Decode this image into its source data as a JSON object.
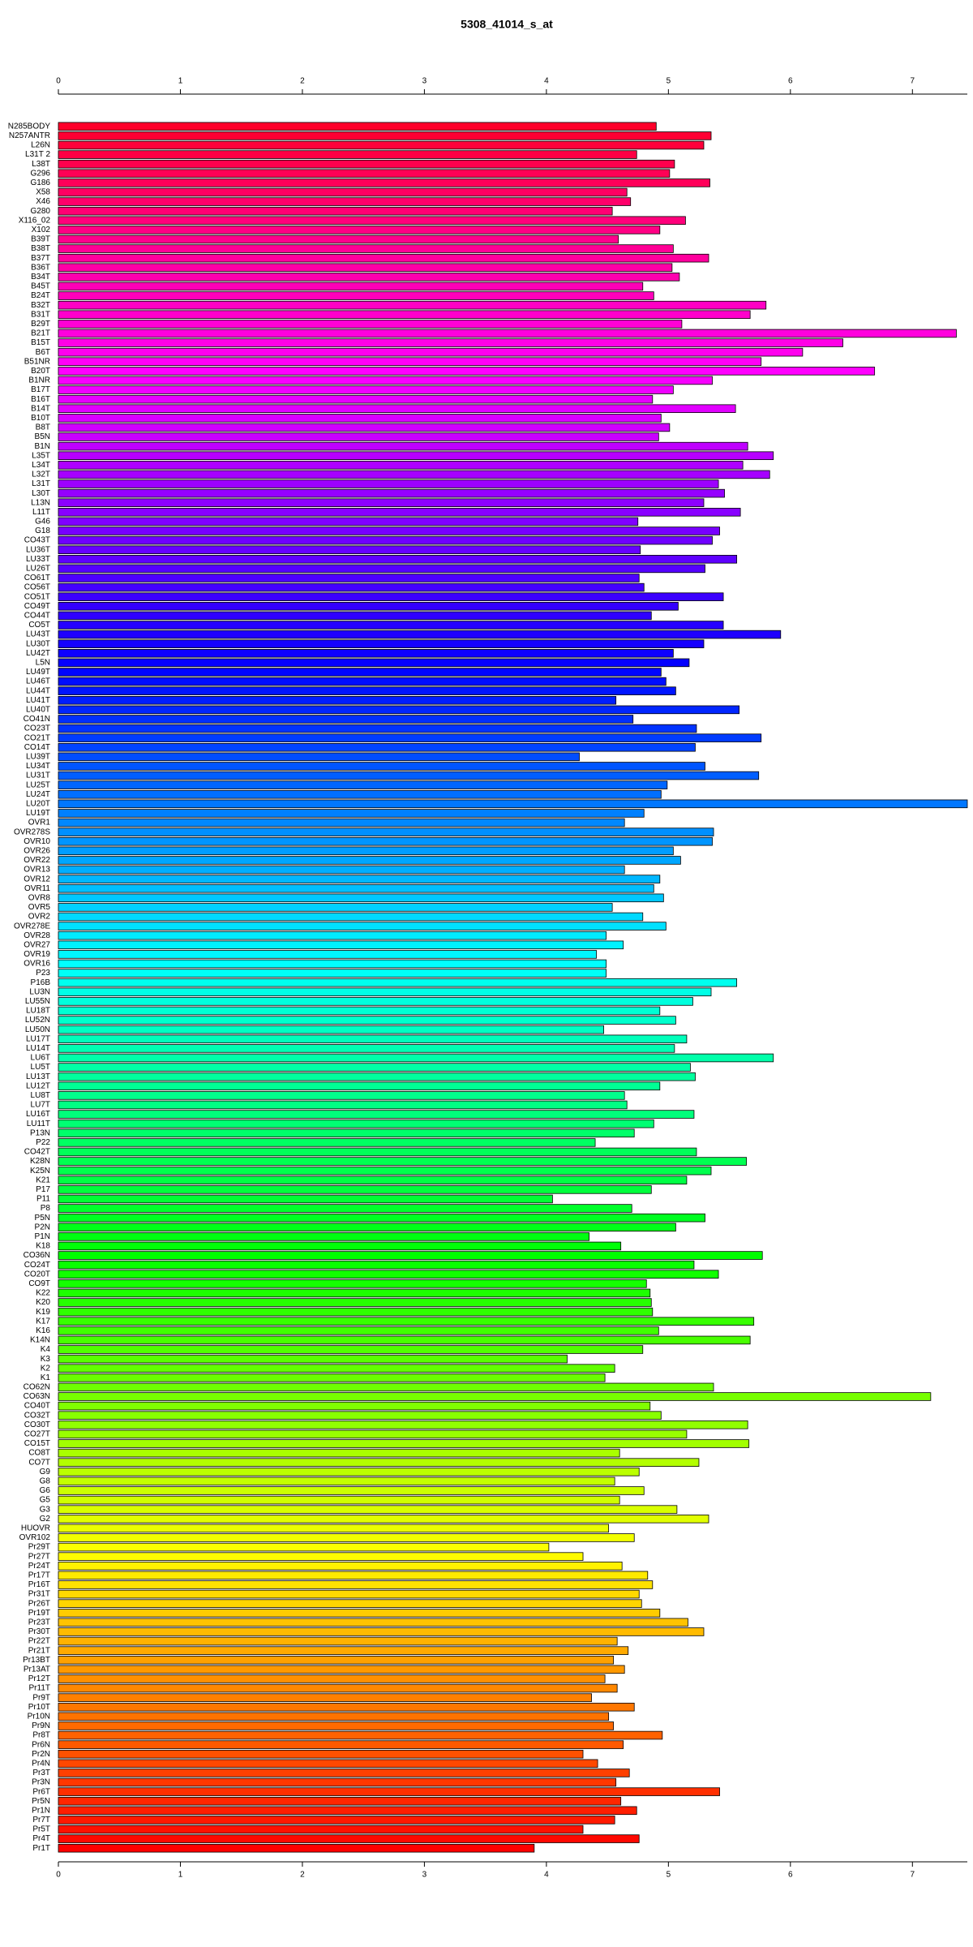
{
  "chart_data": {
    "type": "barh",
    "title": "5308_41014_s_at",
    "categories": [
      "N285BODY",
      "N257ANTR",
      "L26N",
      "L31T 2",
      "L38T",
      "G296",
      "G186",
      "X58",
      "X46",
      "G280",
      "X116_02",
      "X102",
      "B39T",
      "B38T",
      "B37T",
      "B36T",
      "B34T",
      "B45T",
      "B24T",
      "B32T",
      "B31T",
      "B29T",
      "B21T",
      "B15T",
      "B6T",
      "B51NR",
      "B20T",
      "B1NR",
      "B17T",
      "B16T",
      "B14T",
      "B10T",
      "B8T",
      "B5N",
      "B1N",
      "L35T",
      "L34T",
      "L32T",
      "L31T",
      "L30T",
      "L13N",
      "L11T",
      "G46",
      "G18",
      "CO43T",
      "LU36T",
      "LU33T",
      "LU26T",
      "CO61T",
      "CO56T",
      "CO51T",
      "CO49T",
      "CO44T",
      "CO5T",
      "LU43T",
      "LU30T",
      "LU42T",
      "L5N",
      "LU49T",
      "LU46T",
      "LU44T",
      "LU41T",
      "LU40T",
      "CO41N",
      "CO23T",
      "CO21T",
      "CO14T",
      "LU39T",
      "LU34T",
      "LU31T",
      "LU25T",
      "LU24T",
      "LU20T",
      "LU19T",
      "OVR1",
      "OVR278S",
      "OVR10",
      "OVR26",
      "OVR22",
      "OVR13",
      "OVR12",
      "OVR11",
      "OVR8",
      "OVR5",
      "OVR2",
      "OVR278E",
      "OVR28",
      "OVR27",
      "OVR19",
      "OVR16",
      "P23",
      "P16B",
      "LU3N",
      "LU55N",
      "LU18T",
      "LU52N",
      "LU50N",
      "LU17T",
      "LU14T",
      "LU6T",
      "LU5T",
      "LU13T",
      "LU12T",
      "LU8T",
      "LU7T",
      "LU16T",
      "LU11T",
      "P13N",
      "P22",
      "CO42T",
      "K28N",
      "K25N",
      "K21",
      "P17",
      "P11",
      "P8",
      "P5N",
      "P2N",
      "P1N",
      "K18",
      "CO36N",
      "CO24T",
      "CO20T",
      "CO9T",
      "K22",
      "K20",
      "K19",
      "K17",
      "K16",
      "K14N",
      "K4",
      "K3",
      "K2",
      "K1",
      "CO62N",
      "CO63N",
      "CO40T",
      "CO32T",
      "CO30T",
      "CO27T",
      "CO15T",
      "CO8T",
      "CO7T",
      "G9",
      "G8",
      "G6",
      "G5",
      "G3",
      "G2",
      "HUOVR",
      "OVR102",
      "Pr29T",
      "Pr27T",
      "Pr24T",
      "Pr17T",
      "Pr16T",
      "Pr31T",
      "Pr26T",
      "Pr19T",
      "Pr23T",
      "Pr30T",
      "Pr22T",
      "Pr21T",
      "Pr13BT",
      "Pr13AT",
      "Pr12T",
      "Pr11T",
      "Pr9T",
      "Pr10T",
      "Pr10N",
      "Pr9N",
      "Pr8T",
      "Pr6N",
      "Pr2N",
      "Pr4N",
      "Pr3T",
      "Pr3N",
      "Pr6T",
      "Pr5N",
      "Pr1N",
      "Pr7T",
      "Pr5T",
      "Pr4T",
      "Pr1T"
    ],
    "values": [
      4.9,
      5.35,
      5.29,
      4.74,
      5.05,
      5.01,
      5.34,
      4.66,
      4.69,
      4.54,
      5.14,
      4.93,
      4.59,
      5.04,
      5.33,
      5.03,
      5.09,
      4.79,
      4.88,
      5.8,
      5.67,
      5.11,
      7.36,
      6.43,
      6.1,
      5.76,
      6.69,
      5.36,
      5.04,
      4.87,
      5.55,
      4.94,
      5.01,
      4.92,
      5.65,
      5.86,
      5.61,
      5.83,
      5.41,
      5.46,
      5.29,
      5.59,
      4.75,
      5.42,
      5.36,
      4.77,
      5.56,
      5.3,
      4.76,
      4.8,
      5.45,
      5.08,
      4.86,
      5.45,
      5.92,
      5.29,
      5.04,
      5.17,
      4.94,
      4.98,
      5.06,
      4.57,
      5.58,
      4.71,
      5.23,
      5.76,
      5.22,
      4.27,
      5.3,
      5.74,
      4.99,
      4.94,
      7.45,
      4.8,
      4.64,
      5.37,
      5.36,
      5.04,
      5.1,
      4.64,
      4.93,
      4.88,
      4.96,
      4.54,
      4.79,
      4.98,
      4.49,
      4.63,
      4.41,
      4.49,
      4.49,
      5.56,
      5.35,
      5.2,
      4.93,
      5.06,
      4.47,
      5.15,
      5.05,
      5.86,
      5.18,
      5.22,
      4.93,
      4.64,
      4.66,
      5.21,
      4.88,
      4.72,
      4.4,
      5.23,
      5.64,
      5.35,
      5.15,
      4.86,
      4.05,
      4.7,
      5.3,
      5.06,
      4.35,
      4.61,
      5.77,
      5.21,
      5.41,
      4.82,
      4.85,
      4.86,
      4.87,
      5.7,
      4.92,
      5.67,
      4.79,
      4.17,
      4.56,
      4.48,
      5.37,
      7.15,
      4.85,
      4.94,
      5.65,
      5.15,
      5.66,
      4.6,
      5.25,
      4.76,
      4.56,
      4.8,
      4.6,
      5.07,
      5.33,
      4.51,
      4.72,
      4.02,
      4.3,
      4.62,
      4.83,
      4.87,
      4.76,
      4.78,
      4.93,
      5.16,
      5.29,
      4.58,
      4.67,
      4.55,
      4.64,
      4.48,
      4.58,
      4.37,
      4.72,
      4.51,
      4.55,
      4.95,
      4.63,
      4.3,
      4.42,
      4.68,
      4.57,
      5.42,
      4.61,
      4.74,
      4.56,
      4.3,
      4.76,
      3.9
    ],
    "colors": [
      "hsl(350,100%,50%)",
      "hsl(348,100%,50%)",
      "hsl(346,100%,50%)",
      "hsl(344,100%,50%)",
      "hsl(342,100%,50%)",
      "hsl(340,100%,50%)",
      "hsl(339,100%,50%)",
      "hsl(337,100%,50%)",
      "hsl(335,100%,50%)",
      "hsl(333,100%,50%)",
      "hsl(331,100%,50%)",
      "hsl(329,100%,50%)",
      "hsl(327,100%,50%)",
      "hsl(325,100%,50%)",
      "hsl(323,100%,50%)",
      "hsl(321,100%,50%)",
      "hsl(319,100%,50%)",
      "hsl(317,100%,50%)",
      "hsl(316,100%,50%)",
      "hsl(314,100%,50%)",
      "hsl(312,100%,50%)",
      "hsl(310,100%,50%)",
      "hsl(308,100%,50%)",
      "hsl(306,100%,50%)",
      "hsl(304,100%,50%)",
      "hsl(302,100%,50%)",
      "hsl(300,100%,50%)",
      "hsl(298,100%,50%)",
      "hsl(296,100%,50%)",
      "hsl(294,100%,50%)",
      "hsl(293,100%,50%)",
      "hsl(291,100%,50%)",
      "hsl(289,100%,50%)",
      "hsl(287,100%,50%)",
      "hsl(285,100%,50%)",
      "hsl(283,100%,50%)",
      "hsl(281,100%,50%)",
      "hsl(279,100%,50%)",
      "hsl(277,100%,50%)",
      "hsl(275,100%,50%)",
      "hsl(273,100%,50%)",
      "hsl(272,100%,50%)",
      "hsl(270,100%,50%)",
      "hsl(268,100%,50%)",
      "hsl(266,100%,50%)",
      "hsl(264,100%,50%)",
      "hsl(262,100%,50%)",
      "hsl(260,100%,50%)",
      "hsl(258,100%,50%)",
      "hsl(256,100%,50%)",
      "hsl(254,100%,50%)",
      "hsl(252,100%,50%)",
      "hsl(251,100%,50%)",
      "hsl(249,100%,50%)",
      "hsl(247,100%,50%)",
      "hsl(245,100%,50%)",
      "hsl(243,100%,50%)",
      "hsl(241,100%,50%)",
      "hsl(239,100%,50%)",
      "hsl(237,100%,50%)",
      "hsl(235,100%,50%)",
      "hsl(233,100%,50%)",
      "hsl(231,100%,50%)",
      "hsl(229,100%,50%)",
      "hsl(228,100%,50%)",
      "hsl(226,100%,50%)",
      "hsl(224,100%,50%)",
      "hsl(222,100%,50%)",
      "hsl(220,100%,50%)",
      "hsl(218,100%,50%)",
      "hsl(216,100%,50%)",
      "hsl(214,100%,50%)",
      "hsl(212,100%,50%)",
      "hsl(210,100%,50%)",
      "hsl(208,100%,50%)",
      "hsl(206,100%,50%)",
      "hsl(205,100%,50%)",
      "hsl(203,100%,50%)",
      "hsl(201,100%,50%)",
      "hsl(199,100%,50%)",
      "hsl(197,100%,50%)",
      "hsl(195,100%,50%)",
      "hsl(193,100%,50%)",
      "hsl(191,100%,50%)",
      "hsl(189,100%,50%)",
      "hsl(187,100%,50%)",
      "hsl(185,100%,50%)",
      "hsl(183,100%,50%)",
      "hsl(182,100%,50%)",
      "hsl(180,100%,50%)",
      "hsl(178,100%,50%)",
      "hsl(176,100%,50%)",
      "hsl(174,100%,50%)",
      "hsl(172,100%,50%)",
      "hsl(170,100%,50%)",
      "hsl(168,100%,50%)",
      "hsl(166,100%,50%)",
      "hsl(164,100%,50%)",
      "hsl(162,100%,50%)",
      "hsl(160,100%,50%)",
      "hsl(159,100%,50%)",
      "hsl(157,100%,50%)",
      "hsl(155,100%,50%)",
      "hsl(153,100%,50%)",
      "hsl(151,100%,50%)",
      "hsl(149,100%,50%)",
      "hsl(147,100%,50%)",
      "hsl(145,100%,50%)",
      "hsl(143,100%,50%)",
      "hsl(141,100%,50%)",
      "hsl(139,100%,50%)",
      "hsl(138,100%,50%)",
      "hsl(136,100%,50%)",
      "hsl(134,100%,50%)",
      "hsl(132,100%,50%)",
      "hsl(130,100%,50%)",
      "hsl(128,100%,50%)",
      "hsl(126,100%,50%)",
      "hsl(124,100%,50%)",
      "hsl(122,100%,50%)",
      "hsl(120,100%,50%)",
      "hsl(118,100%,50%)",
      "hsl(116,100%,50%)",
      "hsl(115,100%,50%)",
      "hsl(113,100%,50%)",
      "hsl(111,100%,50%)",
      "hsl(109,100%,50%)",
      "hsl(107,100%,50%)",
      "hsl(105,100%,50%)",
      "hsl(103,100%,50%)",
      "hsl(101,100%,50%)",
      "hsl(99,100%,50%)",
      "hsl(97,100%,50%)",
      "hsl(95,100%,50%)",
      "hsl(94,100%,50%)",
      "hsl(92,100%,50%)",
      "hsl(90,100%,50%)",
      "hsl(88,100%,50%)",
      "hsl(86,100%,50%)",
      "hsl(84,100%,50%)",
      "hsl(82,100%,50%)",
      "hsl(80,100%,50%)",
      "hsl(78,100%,50%)",
      "hsl(76,100%,50%)",
      "hsl(74,100%,50%)",
      "hsl(72,100%,50%)",
      "hsl(71,100%,50%)",
      "hsl(69,100%,50%)",
      "hsl(67,100%,50%)",
      "hsl(65,100%,50%)",
      "hsl(63,100%,50%)",
      "hsl(61,100%,50%)",
      "hsl(59,100%,50%)",
      "hsl(57,100%,50%)",
      "hsl(55,100%,50%)",
      "hsl(53,100%,50%)",
      "hsl(51,100%,50%)",
      "hsl(50,100%,50%)",
      "hsl(48,100%,50%)",
      "hsl(46,100%,50%)",
      "hsl(44,100%,50%)",
      "hsl(42,100%,50%)",
      "hsl(40,100%,50%)",
      "hsl(38,100%,50%)",
      "hsl(36,100%,50%)",
      "hsl(34,100%,50%)",
      "hsl(32,100%,50%)",
      "hsl(30,100%,50%)",
      "hsl(28,100%,50%)",
      "hsl(27,100%,50%)",
      "hsl(25,100%,50%)",
      "hsl(23,100%,50%)",
      "hsl(21,100%,50%)",
      "hsl(19,100%,50%)",
      "hsl(17,100%,50%)",
      "hsl(15,100%,50%)",
      "hsl(13,100%,50%)",
      "hsl(11,100%,50%)",
      "hsl(9,100%,50%)",
      "hsl(7,100%,50%)",
      "hsl(6,100%,50%)",
      "hsl(4,100%,50%)",
      "hsl(2,100%,50%)",
      "hsl(0,100%,50%)"
    ],
    "xlim": [
      0,
      7.45
    ],
    "xticks": [
      0,
      1,
      2,
      3,
      4,
      5,
      6,
      7
    ]
  }
}
